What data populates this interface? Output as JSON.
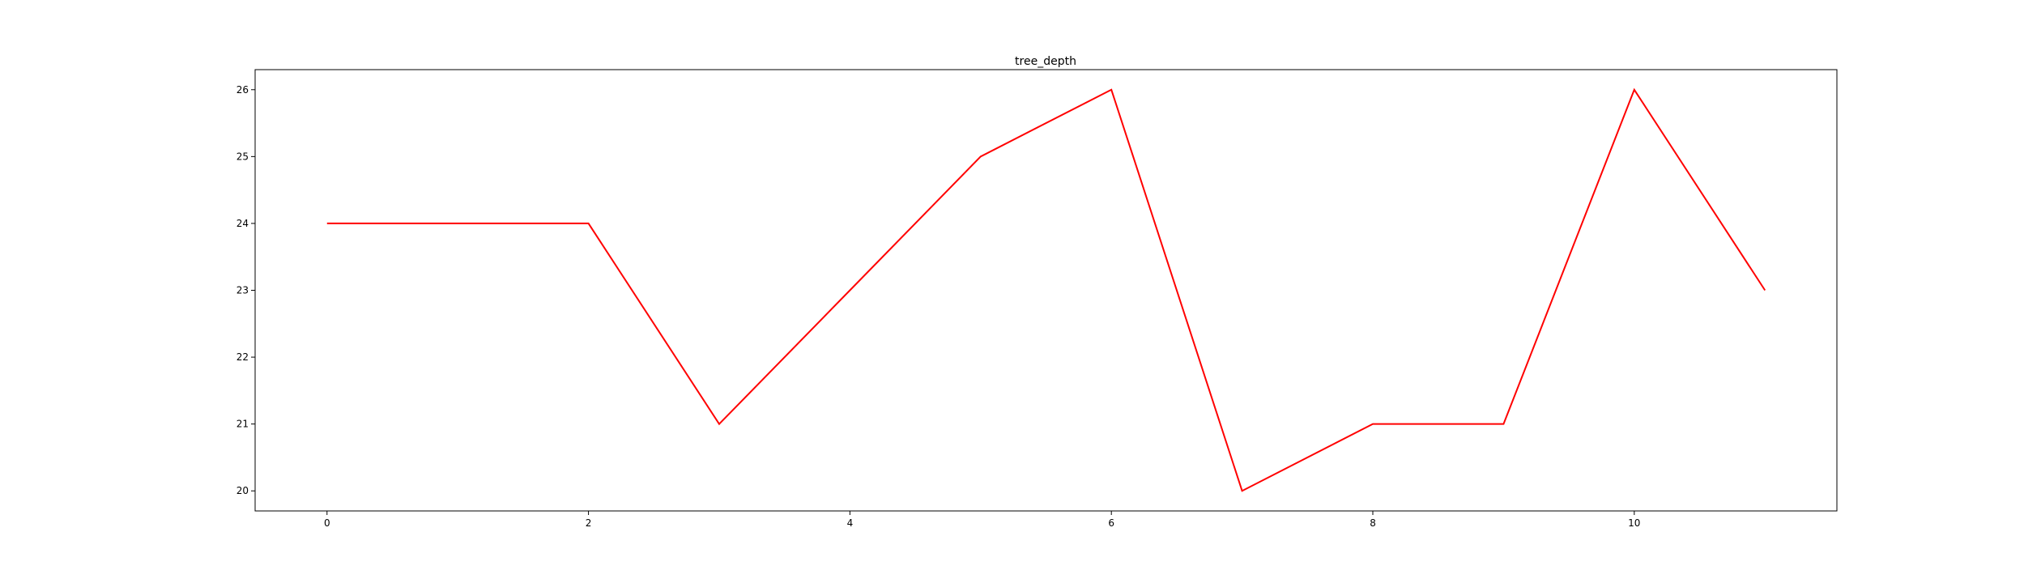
{
  "chart_data": {
    "type": "line",
    "title": "tree_depth",
    "xlabel": "",
    "ylabel": "",
    "x": [
      0,
      1,
      2,
      3,
      4,
      5,
      6,
      7,
      8,
      9,
      10,
      11
    ],
    "series": [
      {
        "values": [
          24,
          24,
          24,
          21,
          23,
          25,
          26,
          20,
          21,
          21,
          26,
          23
        ],
        "color": "#ff0000"
      }
    ],
    "xlim": [
      -0.55,
      11.55
    ],
    "ylim": [
      19.7,
      26.3
    ],
    "xticks": [
      0,
      2,
      4,
      6,
      8,
      10
    ],
    "yticks": [
      20,
      21,
      22,
      23,
      24,
      25,
      26
    ],
    "grid": false,
    "legend": "none"
  }
}
